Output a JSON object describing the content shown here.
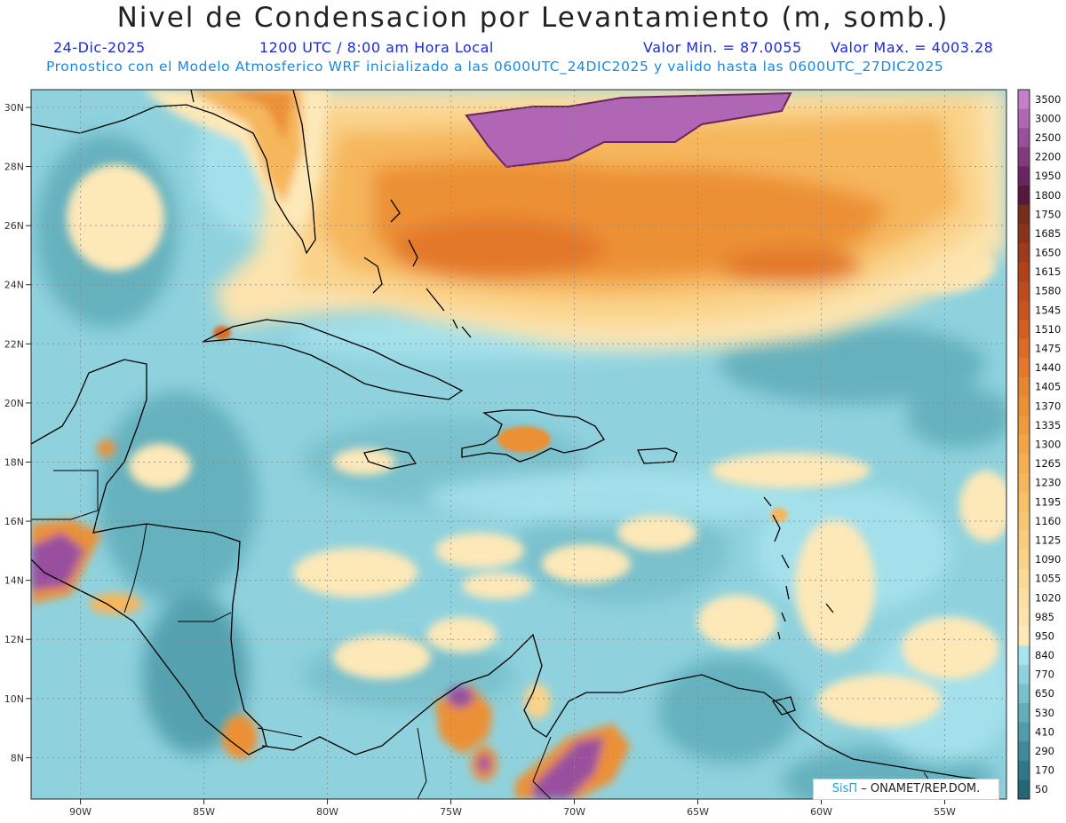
{
  "header": {
    "title": "Nivel de Condensacion por Levantamiento (m, somb.)",
    "date": "24-Dic-2025",
    "time": "1200 UTC / 8:00 am Hora Local",
    "min_label": "Valor Min. = 87.0055",
    "max_label": "Valor Max. = 4003.28",
    "forecast_note": "Pronostico con el Modelo Atmosferico WRF inicializado a las 0600UTC_24DIC2025 y valido hasta las  0600UTC_27DIC2025"
  },
  "map": {
    "lon_labels": [
      "90W",
      "85W",
      "80W",
      "75W",
      "70W",
      "65W",
      "60W",
      "55W"
    ],
    "lat_labels": [
      "30N",
      "28N",
      "26N",
      "24N",
      "22N",
      "20N",
      "18N",
      "16N",
      "14N",
      "12N",
      "10N",
      "8N"
    ],
    "lon_range": [
      -92,
      -52.5
    ],
    "lat_range": [
      6.6,
      30.6
    ]
  },
  "colorbar": {
    "labels": [
      "3500",
      "3000",
      "2500",
      "2200",
      "1950",
      "1800",
      "1750",
      "1685",
      "1650",
      "1615",
      "1580",
      "1545",
      "1510",
      "1475",
      "1440",
      "1405",
      "1370",
      "1335",
      "1300",
      "1265",
      "1230",
      "1195",
      "1160",
      "1125",
      "1090",
      "1055",
      "1020",
      "985",
      "950",
      "840",
      "770",
      "650",
      "530",
      "410",
      "290",
      "170",
      "50"
    ],
    "colors": [
      "#c57fc7",
      "#b066b4",
      "#9a4f9e",
      "#84397f",
      "#6a2460",
      "#56193e",
      "#772d1c",
      "#8a331a",
      "#9e3a19",
      "#b04219",
      "#bd4a1c",
      "#c9531f",
      "#d45d22",
      "#dd6a26",
      "#e3782b",
      "#e88530",
      "#ec9036",
      "#ef9a3e",
      "#f2a446",
      "#f4ad50",
      "#f6b65b",
      "#f7bf66",
      "#f8c672",
      "#f9cd7e",
      "#fad38a",
      "#fbd996",
      "#fcdfa2",
      "#fce3ad",
      "#fde8b8",
      "#a8e3ee",
      "#8fd2de",
      "#78c0cc",
      "#62aebb",
      "#4f9caa",
      "#3f8a99",
      "#307888",
      "#236778"
    ]
  },
  "credit": {
    "brand": "SisΠ",
    "text": "– ONAMET/REP.DOM."
  }
}
